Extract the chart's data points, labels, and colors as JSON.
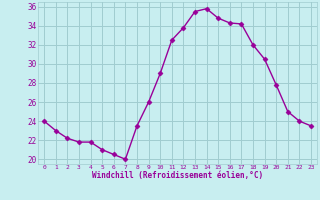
{
  "x": [
    0,
    1,
    2,
    3,
    4,
    5,
    6,
    7,
    8,
    9,
    10,
    11,
    12,
    13,
    14,
    15,
    16,
    17,
    18,
    19,
    20,
    21,
    22,
    23
  ],
  "y": [
    24.0,
    23.0,
    22.2,
    21.8,
    21.8,
    21.0,
    20.5,
    20.0,
    23.5,
    26.0,
    29.0,
    32.5,
    33.8,
    35.5,
    35.8,
    34.8,
    34.3,
    34.2,
    32.0,
    30.5,
    27.8,
    25.0,
    24.0,
    23.5
  ],
  "line_color": "#990099",
  "marker": "D",
  "markersize": 2.5,
  "linewidth": 1.0,
  "bg_color": "#c8eef0",
  "grid_color": "#a0ccd0",
  "xlabel": "Windchill (Refroidissement éolien,°C)",
  "xlabel_color": "#990099",
  "tick_color": "#990099",
  "ylim": [
    19.5,
    36.5
  ],
  "xlim": [
    -0.5,
    23.5
  ],
  "yticks": [
    20,
    22,
    24,
    26,
    28,
    30,
    32,
    34,
    36
  ],
  "xticks": [
    0,
    1,
    2,
    3,
    4,
    5,
    6,
    7,
    8,
    9,
    10,
    11,
    12,
    13,
    14,
    15,
    16,
    17,
    18,
    19,
    20,
    21,
    22,
    23
  ]
}
